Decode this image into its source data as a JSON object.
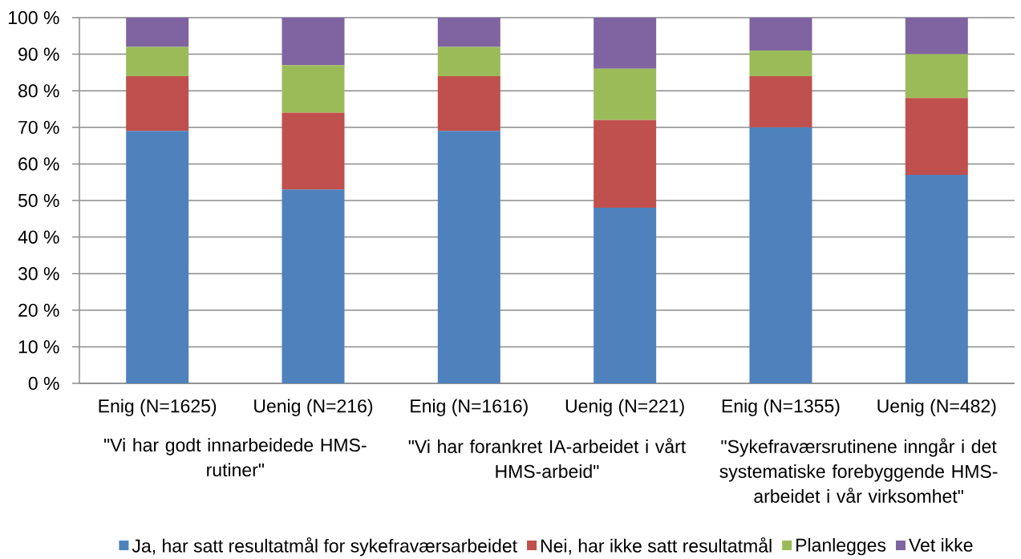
{
  "chart_data": {
    "type": "bar",
    "stacked": true,
    "categories": [
      "Enig (N=1625)",
      "Uenig (N=216)",
      "Enig (N=1616)",
      "Uenig (N=221)",
      "Enig (N=1355)",
      "Uenig (N=482)"
    ],
    "series": [
      {
        "name": "Ja, har satt resultatmål for sykefraværsarbeidet",
        "color": "#4f81bd",
        "values": [
          69,
          53,
          69,
          48,
          70,
          57
        ]
      },
      {
        "name": "Nei, har ikke satt resultatmål",
        "color": "#c0504d",
        "values": [
          15,
          21,
          15,
          24,
          14,
          21
        ]
      },
      {
        "name": "Planlegges",
        "color": "#9bbb59",
        "values": [
          8,
          13,
          8,
          14,
          7,
          12
        ]
      },
      {
        "name": "Vet ikke",
        "color": "#8064a2",
        "values": [
          8,
          13,
          8,
          14,
          9,
          10
        ]
      }
    ],
    "ylim": [
      0,
      100
    ],
    "yticks": [
      {
        "value": 0,
        "label": "0 %"
      },
      {
        "value": 10,
        "label": "10 %"
      },
      {
        "value": 20,
        "label": "20 %"
      },
      {
        "value": 30,
        "label": "30 %"
      },
      {
        "value": 40,
        "label": "40 %"
      },
      {
        "value": 50,
        "label": "50 %"
      },
      {
        "value": 60,
        "label": "60 %"
      },
      {
        "value": 70,
        "label": "70 %"
      },
      {
        "value": 80,
        "label": "80 %"
      },
      {
        "value": 90,
        "label": "90 %"
      },
      {
        "value": 100,
        "label": "100 %"
      }
    ],
    "grid": "y",
    "legend": "bottom",
    "annotations": [
      "\"Vi har godt innarbeidede HMS-rutiner\"",
      "\"Vi har forankret IA-arbeidet i vårt HMS-arbeid\"",
      "\"Sykefraværsrutinene inngår i det systematiske forebyggende HMS-arbeidet i vår virksomhet\""
    ]
  }
}
